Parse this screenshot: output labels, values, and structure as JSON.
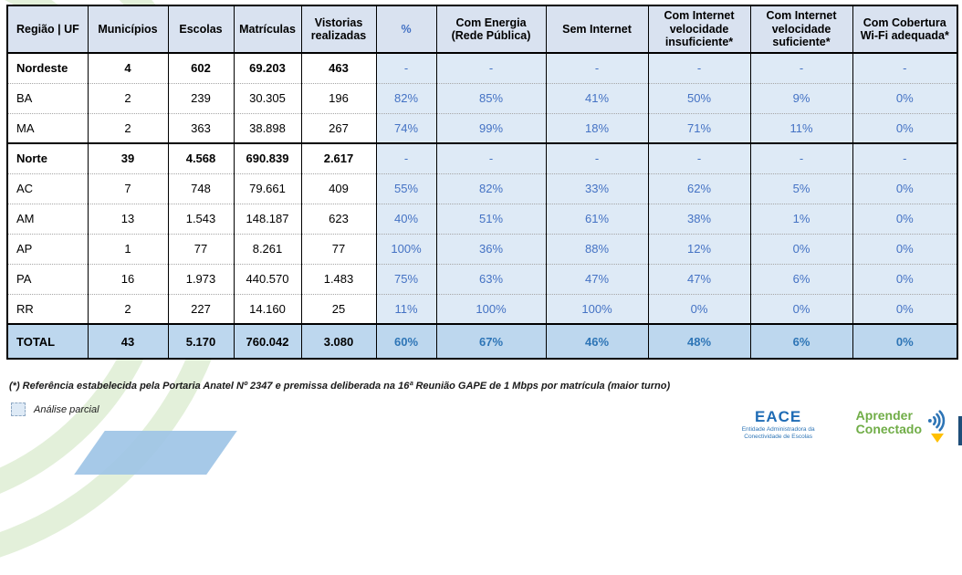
{
  "table": {
    "columns": [
      {
        "label": "Região | UF",
        "highlight": false
      },
      {
        "label": "Municípios",
        "highlight": false
      },
      {
        "label": "Escolas",
        "highlight": false
      },
      {
        "label": "Matrículas",
        "highlight": false
      },
      {
        "label": "Vistorias realizadas",
        "highlight": false
      },
      {
        "label": "%",
        "highlight": true
      },
      {
        "label": "Com Energia (Rede Pública)",
        "highlight": false
      },
      {
        "label": "Sem Internet",
        "highlight": false
      },
      {
        "label": "Com Internet velocidade insuficiente*",
        "highlight": false
      },
      {
        "label": "Com Internet velocidade suficiente*",
        "highlight": false
      },
      {
        "label": "Com Cobertura Wi-Fi adequada*",
        "highlight": false
      }
    ],
    "rows": [
      {
        "type": "region",
        "label": "Nordeste",
        "values": [
          "4",
          "602",
          "69.203",
          "463",
          "-",
          "-",
          "-",
          "-",
          "-",
          "-"
        ]
      },
      {
        "type": "state",
        "label": "BA",
        "values": [
          "2",
          "239",
          "30.305",
          "196",
          "82%",
          "85%",
          "41%",
          "50%",
          "9%",
          "0%"
        ]
      },
      {
        "type": "state",
        "label": "MA",
        "values": [
          "2",
          "363",
          "38.898",
          "267",
          "74%",
          "99%",
          "18%",
          "71%",
          "11%",
          "0%"
        ]
      },
      {
        "type": "region",
        "label": "Norte",
        "values": [
          "39",
          "4.568",
          "690.839",
          "2.617",
          "-",
          "-",
          "-",
          "-",
          "-",
          "-"
        ]
      },
      {
        "type": "state",
        "label": "AC",
        "values": [
          "7",
          "748",
          "79.661",
          "409",
          "55%",
          "82%",
          "33%",
          "62%",
          "5%",
          "0%"
        ]
      },
      {
        "type": "state",
        "label": "AM",
        "values": [
          "13",
          "1.543",
          "148.187",
          "623",
          "40%",
          "51%",
          "61%",
          "38%",
          "1%",
          "0%"
        ]
      },
      {
        "type": "state",
        "label": "AP",
        "values": [
          "1",
          "77",
          "8.261",
          "77",
          "100%",
          "36%",
          "88%",
          "12%",
          "0%",
          "0%"
        ]
      },
      {
        "type": "state",
        "label": "PA",
        "values": [
          "16",
          "1.973",
          "440.570",
          "1.483",
          "75%",
          "63%",
          "47%",
          "47%",
          "6%",
          "0%"
        ]
      },
      {
        "type": "state",
        "label": "RR",
        "values": [
          "2",
          "227",
          "14.160",
          "25",
          "11%",
          "100%",
          "100%",
          "0%",
          "0%",
          "0%"
        ]
      },
      {
        "type": "total",
        "label": "TOTAL",
        "values": [
          "43",
          "5.170",
          "760.042",
          "3.080",
          "60%",
          "67%",
          "46%",
          "48%",
          "6%",
          "0%"
        ]
      }
    ]
  },
  "footnote": "(*) Referência estabelecida pela Portaria Anatel Nº 2347 e premissa deliberada na 16ª Reunião GAPE de 1 Mbps por matrícula (maior turno)",
  "legend": {
    "label": "Análise parcial"
  },
  "logos": {
    "eace": {
      "name": "EACE",
      "subtitle": "Entidade Administradora da Conectividade de Escolas"
    },
    "aprender_conectado": {
      "line1": "Aprender",
      "line2": "Conectado"
    }
  },
  "colors": {
    "header_bg": "#d9e2f0",
    "blue_cell_bg": "#deeaf6",
    "total_row_bg": "#bdd7ee",
    "accent_blue_text": "#4472c4",
    "total_blue_text": "#2e75b6",
    "decor_green": "#e3f0da",
    "decor_blue": "#9cc3e5",
    "logo_green": "#70ad47",
    "logo_blue": "#1f6cb5",
    "arrow_yellow": "#ffc000"
  }
}
